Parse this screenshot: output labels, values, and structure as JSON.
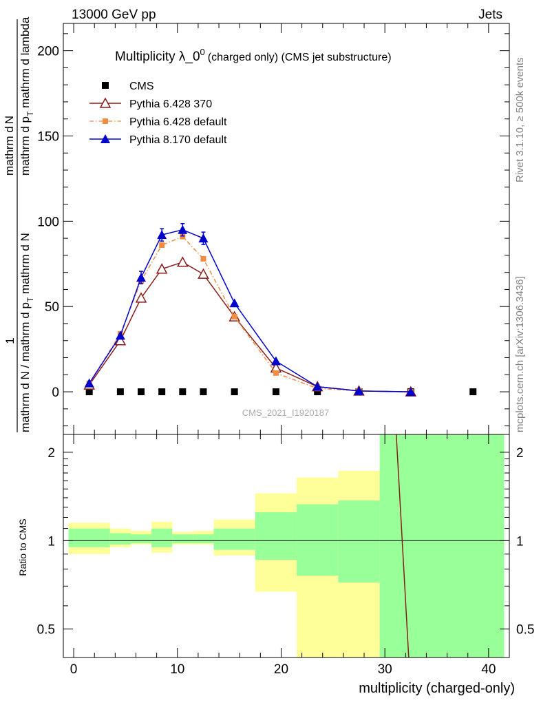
{
  "header": {
    "left": "13000 GeV pp",
    "right": "Jets"
  },
  "side_labels": {
    "right_top": "Rivet 3.1.10, ≥ 500k events",
    "right_bottom": "mcplots.cern.ch [arXiv:1306.3436]"
  },
  "chart_data": [
    {
      "type": "scatter",
      "title": "Multiplicity λ_0",
      "title_superscript": "0",
      "title_suffix": "(charged only) (CMS jet substructure)",
      "watermark": "CMS_2021_I1920187",
      "ylabel_num": "1",
      "ylabel_den": "mathrm d N / mathrm d p",
      "ylabel_den_sub": "T",
      "ylabel_den_tail": " mathrm d N",
      "ylabel_num_tail": "mathrm d",
      "ylabel_num_tail2": "N",
      "ylabel_side_top": "mathrm d",
      "ylabel_side_sub": "T",
      "ylabel_side_tail": " mathrm d lambda",
      "ylabel_p": "mathrm d p",
      "ylabel": "mathrm d^2N / mathrm d p_T mathrm d lambda",
      "xlim": [
        -1,
        42
      ],
      "ylim": [
        -25,
        216
      ],
      "yticks": [
        0,
        50,
        100,
        150,
        200
      ],
      "legend_position": "top-left",
      "series": [
        {
          "name": "CMS",
          "color": "#000000",
          "marker": "square",
          "points": [
            [
              1.5,
              0
            ],
            [
              4.5,
              0
            ],
            [
              6.5,
              0
            ],
            [
              8.5,
              0
            ],
            [
              10.5,
              0
            ],
            [
              12.5,
              0
            ],
            [
              15.5,
              0
            ],
            [
              19.5,
              0
            ],
            [
              23.5,
              0
            ],
            [
              27.5,
              0
            ],
            [
              32.5,
              0
            ],
            [
              38.5,
              0
            ]
          ]
        },
        {
          "name": "Pythia 6.428 370",
          "color": "#8b1a1a",
          "marker": "triangle-open",
          "line": "solid",
          "points": [
            [
              1.5,
              4
            ],
            [
              4.5,
              30
            ],
            [
              6.5,
              55
            ],
            [
              8.5,
              72
            ],
            [
              10.5,
              76
            ],
            [
              12.5,
              69
            ],
            [
              15.5,
              44
            ],
            [
              19.5,
              14
            ],
            [
              23.5,
              3
            ],
            [
              27.5,
              0.5
            ],
            [
              32.5,
              0
            ]
          ]
        },
        {
          "name": "Pythia 6.428 default",
          "color": "#f28c40",
          "marker": "square-small",
          "line": "dashdot",
          "points": [
            [
              1.5,
              5
            ],
            [
              4.5,
              34
            ],
            [
              6.5,
              65
            ],
            [
              8.5,
              86
            ],
            [
              10.5,
              91
            ],
            [
              12.5,
              78
            ],
            [
              15.5,
              44
            ],
            [
              19.5,
              11
            ],
            [
              23.5,
              2
            ],
            [
              27.5,
              0.5
            ],
            [
              32.5,
              0
            ]
          ]
        },
        {
          "name": "Pythia 8.170 default",
          "color": "#0000cc",
          "marker": "triangle-filled",
          "line": "solid",
          "points": [
            [
              1.5,
              5
            ],
            [
              4.5,
              33
            ],
            [
              6.5,
              67
            ],
            [
              8.5,
              92
            ],
            [
              10.5,
              95
            ],
            [
              12.5,
              90
            ],
            [
              15.5,
              52
            ],
            [
              19.5,
              18
            ],
            [
              23.5,
              3
            ],
            [
              27.5,
              0.5
            ],
            [
              32.5,
              0
            ]
          ]
        }
      ]
    },
    {
      "type": "area",
      "ylabel": "Ratio to CMS",
      "xlabel": "multiplicity (charged-only)",
      "xlim": [
        -1,
        42
      ],
      "ylim": [
        0.4,
        2.3
      ],
      "xticks": [
        0,
        10,
        20,
        30,
        40
      ],
      "yticks": [
        0.5,
        1,
        2
      ],
      "reference": 1,
      "bands": [
        {
          "x": [
            -0.5,
            3.5
          ],
          "outer": [
            0.9,
            1.15
          ],
          "inner": [
            0.95,
            1.1
          ]
        },
        {
          "x": [
            3.5,
            5.5
          ],
          "outer": [
            0.95,
            1.1
          ],
          "inner": [
            0.97,
            1.06
          ]
        },
        {
          "x": [
            5.5,
            7.5
          ],
          "outer": [
            0.97,
            1.08
          ],
          "inner": [
            0.98,
            1.05
          ]
        },
        {
          "x": [
            7.5,
            9.5
          ],
          "outer": [
            0.91,
            1.16
          ],
          "inner": [
            0.95,
            1.1
          ]
        },
        {
          "x": [
            9.5,
            11.5
          ],
          "outer": [
            0.97,
            1.07
          ],
          "inner": [
            0.98,
            1.05
          ]
        },
        {
          "x": [
            11.5,
            13.5
          ],
          "outer": [
            0.97,
            1.08
          ],
          "inner": [
            0.98,
            1.05
          ]
        },
        {
          "x": [
            13.5,
            17.5
          ],
          "outer": [
            0.89,
            1.18
          ],
          "inner": [
            0.93,
            1.1
          ]
        },
        {
          "x": [
            17.5,
            21.5
          ],
          "outer": [
            0.67,
            1.45
          ],
          "inner": [
            0.86,
            1.25
          ]
        },
        {
          "x": [
            21.5,
            25.5
          ],
          "outer": [
            0.38,
            1.64
          ],
          "inner": [
            0.76,
            1.33
          ]
        },
        {
          "x": [
            25.5,
            29.5
          ],
          "outer": [
            0.36,
            1.73
          ],
          "inner": [
            0.72,
            1.37
          ]
        },
        {
          "x": [
            29.5,
            41.5
          ],
          "outer": [
            0.36,
            2.4
          ],
          "inner": [
            0.36,
            2.4
          ]
        }
      ],
      "curves": [
        {
          "name": "Pythia 6.428 370",
          "color": "#8b1a1a",
          "points": [
            [
              31.1,
              2.4
            ],
            [
              32.3,
              0.36
            ]
          ]
        }
      ],
      "band_colors": {
        "outer": "#ffff99",
        "inner": "#99ff99"
      }
    }
  ]
}
